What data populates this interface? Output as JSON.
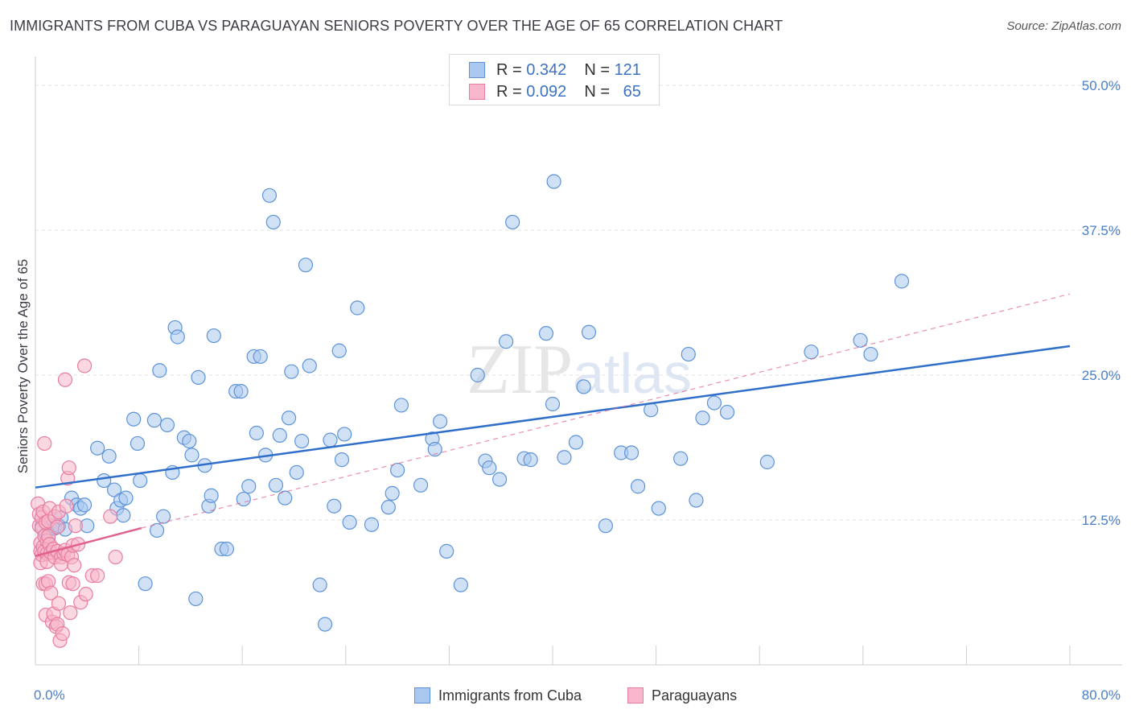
{
  "header": {
    "title": "IMMIGRANTS FROM CUBA VS PARAGUAYAN SENIORS POVERTY OVER THE AGE OF 65 CORRELATION CHART",
    "source": "Source: ZipAtlas.com"
  },
  "legend_box": {
    "rows": [
      {
        "r_label": "R =",
        "r_value": "0.342",
        "n_label": "N =",
        "n_value": "121"
      },
      {
        "r_label": "R =",
        "r_value": "0.092",
        "n_label": "N =",
        "n_value": "65"
      }
    ]
  },
  "bottom_legend": [
    "Immigrants from Cuba",
    "Paraguayans"
  ],
  "watermark": "ZIPatlas",
  "colors": {
    "blue_fill": "#aac8ef",
    "blue_stroke": "#5d93d8",
    "blue_line": "#2f6fc9",
    "pink_fill": "#f7b6cb",
    "pink_stroke": "#e87da0",
    "pink_line": "#e0608e",
    "grid": "#e2e2e2",
    "tick_label": "#4a7fc9"
  },
  "chart_data": {
    "type": "scatter",
    "title": "IMMIGRANTS FROM CUBA VS PARAGUAYAN SENIORS POVERTY OVER THE AGE OF 65 CORRELATION CHART",
    "xlabel": "",
    "ylabel": "Seniors Poverty Over the Age of 65",
    "xlim": [
      0,
      80
    ],
    "ylim": [
      0,
      52.5
    ],
    "x_tick_labels": [
      "0.0%",
      "80.0%"
    ],
    "y_ticks": [
      12.5,
      25.0,
      37.5,
      50.0
    ],
    "y_tick_labels": [
      "12.5%",
      "25.0%",
      "37.5%",
      "50.0%"
    ],
    "grid": true,
    "legend_position": "top-center",
    "series": [
      {
        "name": "Immigrants from Cuba",
        "r": 0.342,
        "n": 121,
        "trend": {
          "x": [
            0,
            80
          ],
          "y": [
            15.3,
            27.5
          ],
          "style": "solid"
        },
        "points": [
          [
            0.5,
            12.0
          ],
          [
            0.8,
            11.2
          ],
          [
            1.0,
            11.0
          ],
          [
            1.3,
            12.0
          ],
          [
            1.5,
            11.8
          ],
          [
            1.8,
            12.0
          ],
          [
            2.0,
            12.7
          ],
          [
            2.3,
            11.7
          ],
          [
            2.8,
            14.4
          ],
          [
            3.2,
            13.8
          ],
          [
            3.5,
            13.5
          ],
          [
            3.8,
            13.8
          ],
          [
            4.0,
            12.0
          ],
          [
            4.8,
            18.7
          ],
          [
            5.3,
            15.9
          ],
          [
            5.7,
            18.0
          ],
          [
            6.1,
            15.1
          ],
          [
            6.3,
            13.5
          ],
          [
            6.6,
            14.2
          ],
          [
            6.8,
            12.9
          ],
          [
            7.0,
            14.4
          ],
          [
            7.6,
            21.2
          ],
          [
            7.9,
            19.1
          ],
          [
            8.1,
            15.9
          ],
          [
            8.5,
            7.0
          ],
          [
            9.2,
            21.1
          ],
          [
            9.4,
            11.6
          ],
          [
            9.6,
            25.4
          ],
          [
            9.9,
            12.8
          ],
          [
            10.2,
            20.7
          ],
          [
            10.6,
            16.6
          ],
          [
            10.8,
            29.1
          ],
          [
            11.0,
            28.3
          ],
          [
            11.5,
            19.6
          ],
          [
            11.9,
            19.3
          ],
          [
            12.1,
            18.1
          ],
          [
            12.4,
            5.7
          ],
          [
            12.6,
            24.8
          ],
          [
            13.1,
            17.2
          ],
          [
            13.4,
            13.7
          ],
          [
            13.6,
            14.6
          ],
          [
            13.8,
            28.4
          ],
          [
            14.4,
            10.0
          ],
          [
            14.8,
            10.0
          ],
          [
            15.5,
            23.6
          ],
          [
            15.9,
            23.6
          ],
          [
            16.1,
            14.3
          ],
          [
            16.5,
            15.4
          ],
          [
            16.9,
            26.6
          ],
          [
            17.1,
            20.0
          ],
          [
            17.4,
            26.6
          ],
          [
            17.8,
            18.1
          ],
          [
            18.1,
            40.5
          ],
          [
            18.4,
            38.2
          ],
          [
            18.6,
            15.5
          ],
          [
            18.9,
            19.8
          ],
          [
            19.3,
            14.4
          ],
          [
            19.6,
            21.3
          ],
          [
            19.8,
            25.3
          ],
          [
            20.2,
            16.6
          ],
          [
            20.6,
            19.3
          ],
          [
            20.9,
            34.5
          ],
          [
            21.2,
            25.8
          ],
          [
            22.0,
            6.9
          ],
          [
            22.4,
            3.5
          ],
          [
            22.8,
            19.4
          ],
          [
            23.1,
            13.7
          ],
          [
            23.5,
            27.1
          ],
          [
            23.7,
            17.7
          ],
          [
            23.9,
            19.9
          ],
          [
            24.3,
            12.3
          ],
          [
            24.9,
            30.8
          ],
          [
            26.0,
            12.1
          ],
          [
            27.3,
            13.6
          ],
          [
            27.6,
            14.8
          ],
          [
            28.0,
            16.8
          ],
          [
            28.3,
            22.4
          ],
          [
            29.8,
            15.5
          ],
          [
            30.7,
            19.5
          ],
          [
            30.9,
            18.6
          ],
          [
            31.3,
            21.0
          ],
          [
            31.8,
            9.8
          ],
          [
            32.9,
            6.9
          ],
          [
            34.2,
            25.0
          ],
          [
            34.8,
            17.6
          ],
          [
            35.1,
            17.0
          ],
          [
            35.9,
            16.0
          ],
          [
            36.4,
            27.9
          ],
          [
            36.9,
            38.2
          ],
          [
            37.8,
            17.8
          ],
          [
            38.3,
            17.7
          ],
          [
            39.5,
            28.6
          ],
          [
            40.0,
            22.5
          ],
          [
            40.1,
            41.7
          ],
          [
            40.9,
            17.9
          ],
          [
            41.8,
            19.2
          ],
          [
            42.4,
            24.0
          ],
          [
            42.8,
            28.7
          ],
          [
            44.1,
            12.0
          ],
          [
            45.3,
            18.3
          ],
          [
            46.1,
            18.3
          ],
          [
            46.6,
            15.4
          ],
          [
            47.6,
            22.0
          ],
          [
            48.2,
            13.5
          ],
          [
            49.9,
            17.8
          ],
          [
            50.5,
            26.8
          ],
          [
            51.1,
            14.2
          ],
          [
            51.6,
            21.3
          ],
          [
            52.5,
            22.6
          ],
          [
            53.5,
            21.8
          ],
          [
            56.6,
            17.5
          ],
          [
            60.0,
            27.0
          ],
          [
            63.8,
            28.0
          ],
          [
            64.6,
            26.8
          ],
          [
            67.0,
            33.1
          ]
        ]
      },
      {
        "name": "Paraguayans",
        "r": 0.092,
        "n": 65,
        "trend": {
          "x": [
            0,
            8.2
          ],
          "y": [
            9.4,
            11.8
          ],
          "style": "solid"
        },
        "trend_extended": {
          "x": [
            8.2,
            80
          ],
          "y": [
            11.8,
            32.0
          ],
          "style": "dashed"
        },
        "points": [
          [
            0.2,
            13.9
          ],
          [
            0.3,
            13.0
          ],
          [
            0.3,
            12.0
          ],
          [
            0.4,
            10.5
          ],
          [
            0.4,
            9.8
          ],
          [
            0.4,
            8.8
          ],
          [
            0.5,
            12.7
          ],
          [
            0.5,
            11.8
          ],
          [
            0.5,
            9.5
          ],
          [
            0.6,
            13.2
          ],
          [
            0.6,
            10.2
          ],
          [
            0.6,
            7.0
          ],
          [
            0.7,
            19.1
          ],
          [
            0.7,
            11.1
          ],
          [
            0.7,
            9.8
          ],
          [
            0.8,
            12.3
          ],
          [
            0.8,
            7.0
          ],
          [
            0.8,
            4.3
          ],
          [
            0.9,
            10.7
          ],
          [
            0.9,
            9.6
          ],
          [
            0.9,
            8.9
          ],
          [
            1.0,
            12.4
          ],
          [
            1.0,
            11.1
          ],
          [
            1.0,
            7.2
          ],
          [
            1.1,
            13.5
          ],
          [
            1.1,
            10.4
          ],
          [
            1.2,
            9.7
          ],
          [
            1.2,
            6.2
          ],
          [
            1.3,
            3.7
          ],
          [
            1.4,
            10.0
          ],
          [
            1.4,
            4.4
          ],
          [
            1.5,
            12.8
          ],
          [
            1.5,
            9.3
          ],
          [
            1.6,
            3.3
          ],
          [
            1.7,
            11.9
          ],
          [
            1.7,
            9.8
          ],
          [
            1.7,
            3.5
          ],
          [
            1.8,
            13.2
          ],
          [
            1.8,
            5.3
          ],
          [
            1.9,
            2.1
          ],
          [
            2.0,
            9.3
          ],
          [
            2.0,
            8.7
          ],
          [
            2.1,
            2.7
          ],
          [
            2.2,
            9.6
          ],
          [
            2.3,
            24.6
          ],
          [
            2.3,
            9.9
          ],
          [
            2.4,
            13.7
          ],
          [
            2.5,
            16.1
          ],
          [
            2.5,
            9.5
          ],
          [
            2.6,
            17.0
          ],
          [
            2.6,
            7.1
          ],
          [
            2.7,
            4.5
          ],
          [
            2.8,
            9.3
          ],
          [
            2.9,
            10.3
          ],
          [
            2.9,
            7.0
          ],
          [
            3.0,
            8.6
          ],
          [
            3.1,
            12.0
          ],
          [
            3.3,
            10.4
          ],
          [
            3.5,
            5.4
          ],
          [
            3.8,
            25.8
          ],
          [
            3.9,
            6.1
          ],
          [
            4.4,
            7.7
          ],
          [
            4.8,
            7.7
          ],
          [
            5.8,
            12.8
          ],
          [
            6.2,
            9.3
          ]
        ]
      }
    ]
  }
}
